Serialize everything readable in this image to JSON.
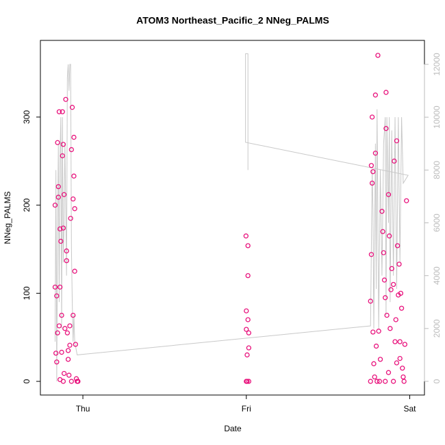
{
  "chart_data": {
    "type": "scatter",
    "title": "ATOM3 Northeast_Pacific_2 NNeg_PALMS",
    "xlabel": "Date",
    "ylabel": "NNeg_PALMS",
    "color": "#e8127c",
    "x": [
      -0.17,
      -0.17,
      -0.165,
      -0.16,
      -0.16,
      -0.155,
      -0.155,
      -0.15,
      -0.15,
      -0.145,
      -0.145,
      -0.14,
      -0.14,
      -0.135,
      -0.13,
      -0.13,
      -0.125,
      -0.125,
      -0.12,
      -0.12,
      -0.115,
      -0.115,
      -0.11,
      -0.105,
      -0.1,
      -0.1,
      -0.095,
      -0.09,
      -0.09,
      -0.085,
      -0.08,
      -0.075,
      -0.07,
      -0.065,
      -0.06,
      -0.06,
      -0.055,
      -0.055,
      -0.05,
      -0.05,
      -0.045,
      -0.04,
      -0.035,
      -0.03,
      -0.14,
      -0.12,
      -0.08,
      -0.07,
      0.998,
      1.0,
      1.0,
      1.0,
      1.005,
      1.01,
      1.01,
      1.01,
      1.015,
      1.015,
      1.005,
      1.015,
      1.76,
      1.76,
      1.765,
      1.765,
      1.77,
      1.77,
      1.775,
      1.775,
      1.78,
      1.785,
      1.79,
      1.79,
      1.795,
      1.8,
      1.805,
      1.81,
      1.815,
      1.82,
      1.83,
      1.835,
      1.84,
      1.845,
      1.85,
      1.855,
      1.855,
      1.86,
      1.87,
      1.875,
      1.88,
      1.885,
      1.89,
      1.9,
      1.905,
      1.91,
      1.915,
      1.92,
      1.925,
      1.93,
      1.935,
      1.94,
      1.945,
      1.95,
      1.955,
      1.96,
      1.965,
      1.97,
      1.98,
      1.85,
      1.87,
      1.9,
      1.92,
      1.94
    ],
    "values": [
      200,
      107,
      32,
      22,
      97,
      271,
      55,
      221,
      209,
      63,
      306,
      173,
      107,
      159,
      75,
      33,
      306,
      256,
      269,
      174,
      212,
      9,
      60,
      320,
      148,
      137,
      55,
      35,
      25,
      7,
      63,
      185,
      263,
      311,
      207,
      75,
      233,
      277,
      196,
      125,
      42,
      3,
      0,
      0,
      2,
      0,
      41,
      0,
      165,
      80,
      59,
      0,
      0,
      154,
      120,
      70,
      38,
      55,
      30,
      0,
      0,
      91,
      144,
      245,
      300,
      225,
      238,
      56,
      20,
      5,
      259,
      325,
      40,
      0,
      370,
      57,
      0,
      25,
      193,
      170,
      146,
      115,
      95,
      287,
      328,
      75,
      212,
      165,
      60,
      104,
      128,
      110,
      250,
      45,
      70,
      273,
      154,
      98,
      133,
      45,
      100,
      83,
      15,
      5,
      0,
      42,
      205,
      0,
      10,
      0,
      21,
      26
    ],
    "xlim": [
      -0.26,
      2.09
    ],
    "xticks": [
      {
        "value": 0,
        "label": "Thu"
      },
      {
        "value": 1,
        "label": "Fri"
      },
      {
        "value": 2,
        "label": "Sat"
      }
    ],
    "ylim": [
      -15.5,
      387
    ],
    "yticks": [
      0,
      100,
      200,
      300
    ],
    "y2lim": [
      -518,
      12907
    ],
    "y2ticks": [
      0,
      2000,
      4000,
      6000,
      8000,
      10000,
      12000
    ],
    "line": {
      "type": "line",
      "axis": "y2",
      "color": "#c8c8c8",
      "x": [
        -0.17,
        -0.165,
        -0.16,
        -0.155,
        -0.15,
        -0.145,
        -0.14,
        -0.135,
        -0.13,
        -0.125,
        -0.12,
        -0.115,
        -0.11,
        -0.1,
        -0.095,
        -0.09,
        -0.085,
        -0.08,
        -0.075,
        -0.07,
        -0.065,
        -0.06,
        -0.055,
        -0.05,
        -0.035,
        1.76,
        1.765,
        1.77,
        1.775,
        1.78,
        1.79,
        1.795,
        1.8,
        1.81,
        1.82,
        1.83,
        1.84,
        1.85,
        1.855,
        1.86,
        1.87,
        1.875,
        1.88,
        1.89,
        1.9,
        1.91,
        1.92,
        1.93,
        1.94,
        1.95,
        1.96,
        1.99,
        0.995,
        0.995,
        1.01,
        1.01
      ],
      "values": [
        1500,
        8000,
        0,
        5500,
        9000,
        3000,
        8500,
        10000,
        2000,
        10000,
        4500,
        6000,
        9000,
        4000,
        11500,
        12000,
        11000,
        12000,
        12000,
        5000,
        3000,
        1500,
        2500,
        1500,
        1000,
        2100,
        5000,
        8000,
        6500,
        2000,
        9000,
        3500,
        10300,
        2000,
        8000,
        4000,
        9000,
        10000,
        2500,
        10000,
        6000,
        10000,
        3000,
        9500,
        4000,
        10000,
        3500,
        10000,
        4500,
        10000,
        7500,
        7800,
        9050,
        12400,
        12400,
        8000
      ]
    }
  }
}
